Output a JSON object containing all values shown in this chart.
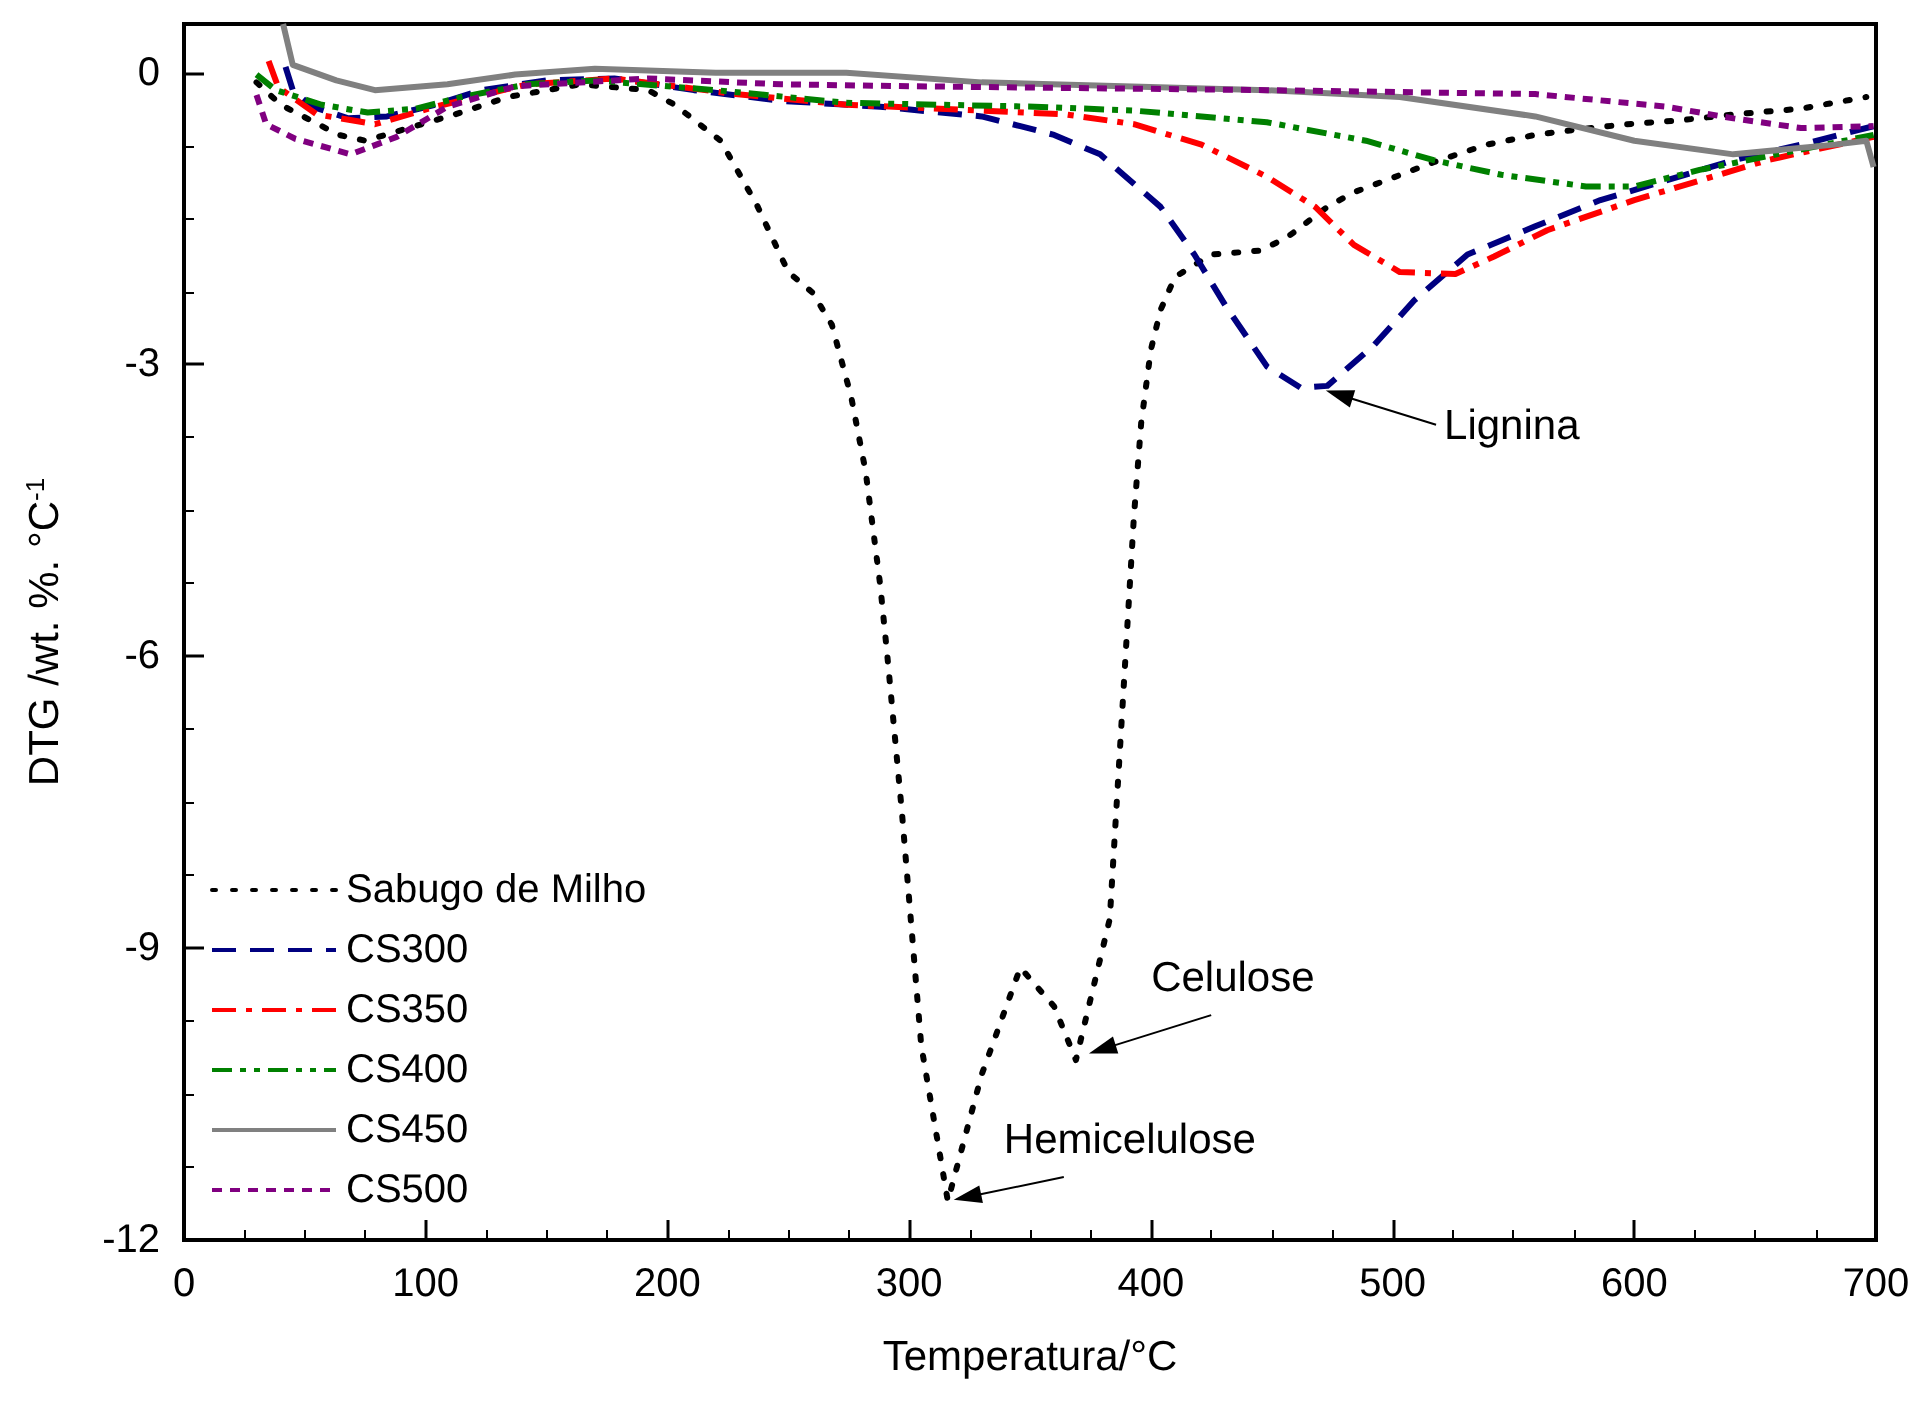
{
  "chart_data": {
    "type": "line",
    "xlabel": "Temperatura/°C",
    "ylabel": "DTG /wt. %. °C$^{-1}$",
    "xlim": [
      0,
      700
    ],
    "xticks": [
      0,
      100,
      200,
      300,
      400,
      500,
      600,
      700
    ],
    "ylim": [
      -12,
      0.5
    ],
    "yticks": [
      0,
      -3,
      -6,
      -9,
      -12
    ],
    "grid": false,
    "legend": "bottom left",
    "marker": "none",
    "annotations": [
      {
        "text": "Lignina",
        "x": 470,
        "y": -3.25
      },
      {
        "text": "Celulose",
        "x": 372,
        "y": -10.1
      },
      {
        "text": "Hemicelulose",
        "x": 316,
        "y": -11.6
      }
    ],
    "series": [
      {
        "name": "Sabugo de Milho",
        "color": "#000000",
        "line_style": "dotted",
        "x": [
          30,
          40,
          64,
          75,
          112,
          134,
          164,
          192,
          203,
          222,
          237,
          250,
          260,
          268,
          276,
          282,
          288,
          291,
          294,
          297,
          305,
          316,
          330,
          346,
          360,
          369,
          383,
          393,
          396,
          400,
          404,
          410,
          425,
          445,
          456,
          473,
          484,
          498,
          517,
          539,
          559,
          578,
          597,
          619,
          641,
          669,
          696
        ],
        "values": [
          -0.1,
          -0.33,
          -0.64,
          -0.7,
          -0.43,
          -0.25,
          -0.12,
          -0.18,
          -0.33,
          -0.7,
          -1.36,
          -2.05,
          -2.26,
          -2.59,
          -3.33,
          -4.1,
          -5.26,
          -6.0,
          -6.8,
          -7.6,
          -10.0,
          -11.6,
          -10.3,
          -9.2,
          -9.6,
          -10.15,
          -8.7,
          -4.56,
          -3.6,
          -2.85,
          -2.44,
          -2.1,
          -1.87,
          -1.83,
          -1.7,
          -1.38,
          -1.23,
          -1.1,
          -0.92,
          -0.74,
          -0.64,
          -0.58,
          -0.53,
          -0.49,
          -0.43,
          -0.37,
          -0.25
        ]
      },
      {
        "name": "CS300",
        "color": "#000080",
        "line_style": "dashed",
        "x": [
          42,
          45,
          53,
          68,
          84,
          104,
          123,
          150,
          178,
          211,
          247,
          288,
          330,
          346,
          360,
          379,
          404,
          418,
          431,
          448,
          462,
          473,
          492,
          509,
          531,
          559,
          586,
          613,
          641,
          669,
          699
        ],
        "values": [
          0.06,
          -0.18,
          -0.35,
          -0.47,
          -0.45,
          -0.33,
          -0.18,
          -0.08,
          -0.06,
          -0.18,
          -0.29,
          -0.35,
          -0.45,
          -0.55,
          -0.64,
          -0.84,
          -1.38,
          -1.87,
          -2.4,
          -3.02,
          -3.24,
          -3.22,
          -2.81,
          -2.34,
          -1.87,
          -1.58,
          -1.31,
          -1.11,
          -0.9,
          -0.74,
          -0.55
        ]
      },
      {
        "name": "CS350",
        "color": "#ff0000",
        "line_style": "dashdot",
        "x": [
          35,
          39,
          55,
          79,
          104,
          142,
          178,
          228,
          274,
          330,
          365,
          393,
          421,
          448,
          468,
          484,
          503,
          526,
          542,
          564,
          600,
          627,
          655,
          699
        ],
        "values": [
          0.12,
          -0.15,
          -0.43,
          -0.53,
          -0.35,
          -0.12,
          -0.06,
          -0.22,
          -0.33,
          -0.39,
          -0.43,
          -0.53,
          -0.74,
          -1.07,
          -1.38,
          -1.77,
          -2.05,
          -2.07,
          -1.89,
          -1.62,
          -1.31,
          -1.11,
          -0.9,
          -0.66
        ]
      },
      {
        "name": "CS400",
        "color": "#008000",
        "line_style": "dashdotdot",
        "x": [
          30,
          38,
          57,
          76,
          96,
          115,
          142,
          170,
          220,
          274,
          352,
          393,
          448,
          489,
          517,
          545,
          580,
          600,
          627,
          655,
          699
        ],
        "values": [
          -0.02,
          -0.18,
          -0.33,
          -0.41,
          -0.37,
          -0.25,
          -0.12,
          -0.08,
          -0.18,
          -0.31,
          -0.35,
          -0.39,
          -0.51,
          -0.7,
          -0.9,
          -1.05,
          -1.17,
          -1.17,
          -1.0,
          -0.86,
          -0.64
        ]
      },
      {
        "name": "CS450",
        "color": "#808080",
        "line_style": "solid",
        "x": [
          41,
          45,
          63,
          79,
          109,
          137,
          170,
          220,
          274,
          330,
          448,
          503,
          559,
          600,
          641,
          683,
          696,
          699
        ],
        "values": [
          0.5,
          0.08,
          -0.08,
          -0.18,
          -0.12,
          -0.02,
          0.04,
          0,
          0,
          -0.1,
          -0.18,
          -0.25,
          -0.45,
          -0.7,
          -0.84,
          -0.74,
          -0.7,
          -0.97
        ]
      },
      {
        "name": "CS500",
        "color": "#800080",
        "line_style": "shortdash",
        "x": [
          30,
          34,
          46,
          69,
          88,
          109,
          137,
          192,
          247,
          302,
          448,
          559,
          613,
          641,
          669,
          699
        ],
        "values": [
          -0.23,
          -0.53,
          -0.68,
          -0.84,
          -0.66,
          -0.35,
          -0.14,
          -0.06,
          -0.12,
          -0.14,
          -0.18,
          -0.22,
          -0.35,
          -0.47,
          -0.57,
          -0.55
        ]
      }
    ]
  }
}
